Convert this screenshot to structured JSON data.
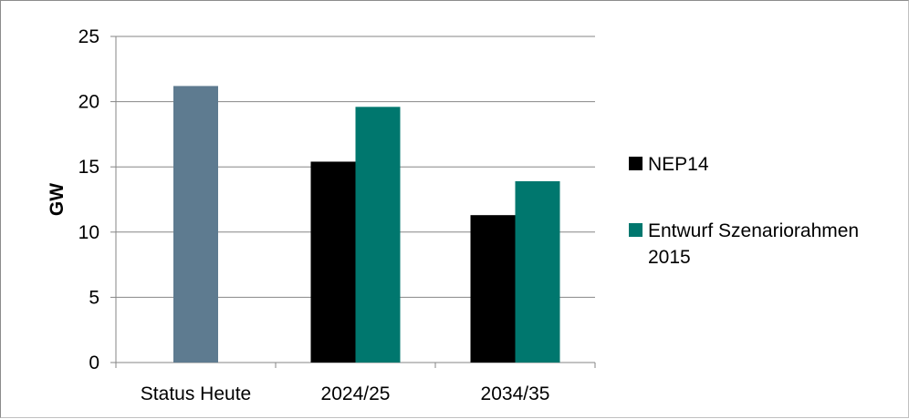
{
  "chart_data": {
    "type": "bar",
    "categories": [
      "Status Heute",
      "2024/25",
      "2034/35"
    ],
    "series": [
      {
        "name": "",
        "color": "#5e7b90",
        "values": [
          21.2,
          null,
          null
        ]
      },
      {
        "name": "NEP14",
        "color": "#000000",
        "values": [
          null,
          15.4,
          11.3
        ]
      },
      {
        "name": "Entwurf Szenariorahmen 2015",
        "color": "#00776e",
        "values": [
          null,
          19.6,
          13.9
        ]
      }
    ],
    "ylabel": "GW",
    "ylim": [
      0,
      25
    ],
    "yticks": [
      0,
      5,
      10,
      15,
      20,
      25
    ],
    "grid": true,
    "legend": "right"
  }
}
